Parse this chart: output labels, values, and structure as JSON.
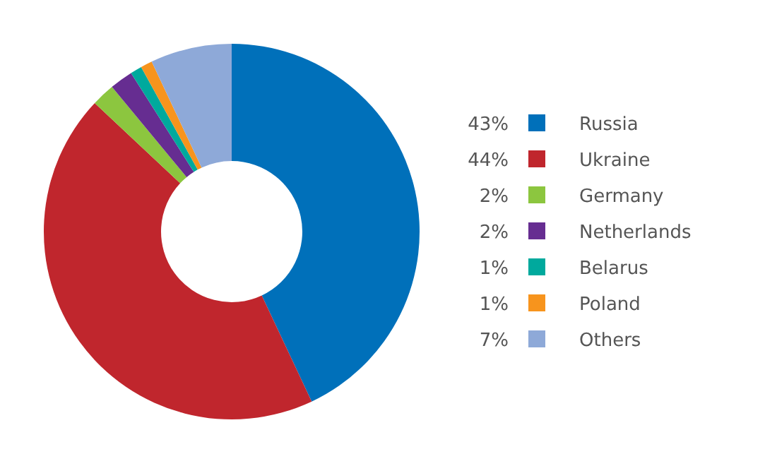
{
  "chart_data": {
    "type": "donut",
    "categories": [
      "Russia",
      "Ukraine",
      "Germany",
      "Netherlands",
      "Belarus",
      "Poland",
      "Others"
    ],
    "values": [
      43,
      44,
      2,
      2,
      1,
      1,
      7
    ],
    "value_labels": [
      "43%",
      "44%",
      "2%",
      "2%",
      "1%",
      "1%",
      "7%"
    ],
    "colors": [
      "#0070ba",
      "#c0262d",
      "#8cc63f",
      "#662d91",
      "#00a99d",
      "#f7941d",
      "#8ea9d8"
    ],
    "legend": "right"
  }
}
